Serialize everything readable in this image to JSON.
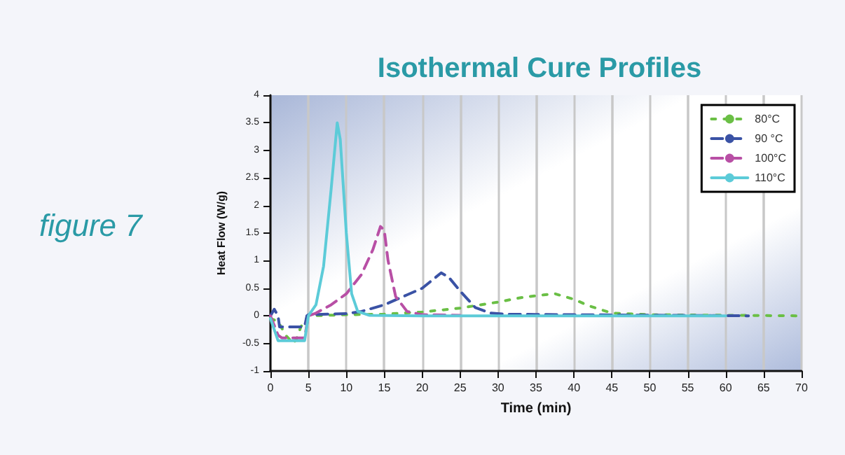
{
  "chart_data": {
    "type": "line",
    "title": "Isothermal Cure Profiles",
    "xlabel": "Time (min)",
    "ylabel": "Heat Flow (W/g)",
    "annotations": [
      "figure 7"
    ],
    "xlim": [
      0,
      70
    ],
    "xticks": [
      0,
      5,
      10,
      15,
      20,
      25,
      30,
      35,
      40,
      45,
      50,
      55,
      60,
      65,
      70
    ],
    "ylim": [
      -1,
      4
    ],
    "yticks": [
      -1,
      -0.5,
      0,
      0.5,
      1,
      1.5,
      2,
      2.5,
      3,
      3.5,
      4
    ],
    "grid": "x",
    "legend": "top right",
    "marker": "none",
    "series": [
      {
        "name": "80°C",
        "color": "#6abf45",
        "line_style": "dotted",
        "x": [
          0,
          1,
          2,
          3,
          3.5,
          4,
          5,
          10,
          15,
          20,
          25,
          30,
          33,
          36,
          37.5,
          40,
          42,
          45,
          50,
          60,
          70
        ],
        "values": [
          -0.05,
          -0.1,
          -0.35,
          -0.5,
          -0.4,
          -0.2,
          0,
          0.02,
          0.03,
          0.07,
          0.14,
          0.25,
          0.33,
          0.38,
          0.4,
          0.3,
          0.18,
          0.05,
          0.02,
          0.01,
          0
        ]
      },
      {
        "name": "90 °C",
        "color": "#3a52a5",
        "line_style": "dashed",
        "x": [
          0,
          0.5,
          1,
          1.2,
          4.5,
          4.8,
          5,
          10,
          12,
          15,
          18,
          20,
          22.5,
          23.5,
          25,
          26,
          27,
          29,
          31,
          40,
          63
        ],
        "values": [
          0,
          0.12,
          0,
          -0.2,
          -0.2,
          0,
          0.02,
          0.04,
          0.08,
          0.2,
          0.38,
          0.5,
          0.78,
          0.7,
          0.45,
          0.3,
          0.15,
          0.05,
          0.03,
          0.02,
          0
        ]
      },
      {
        "name": "100°C",
        "color": "#b84fa5",
        "line_style": "dashed",
        "x": [
          0,
          1,
          1.5,
          4.5,
          5,
          6,
          8,
          10,
          12,
          13.5,
          14.5,
          15,
          15.5,
          16.5,
          18,
          20,
          25
        ],
        "values": [
          0,
          -0.35,
          -0.4,
          -0.4,
          0,
          0.05,
          0.2,
          0.4,
          0.75,
          1.2,
          1.62,
          1.55,
          1,
          0.35,
          0.08,
          0.02,
          0.01
        ]
      },
      {
        "name": "110°C",
        "color": "#5ccbd8",
        "line_style": "solid",
        "x": [
          0,
          1,
          4.5,
          5,
          6,
          7,
          8,
          8.8,
          9.2,
          10,
          10.7,
          11.5,
          13,
          20,
          60
        ],
        "values": [
          -0.05,
          -0.45,
          -0.45,
          0,
          0.2,
          0.9,
          2.3,
          3.5,
          3.2,
          1.5,
          0.4,
          0.08,
          0.01,
          0,
          0
        ]
      }
    ]
  }
}
